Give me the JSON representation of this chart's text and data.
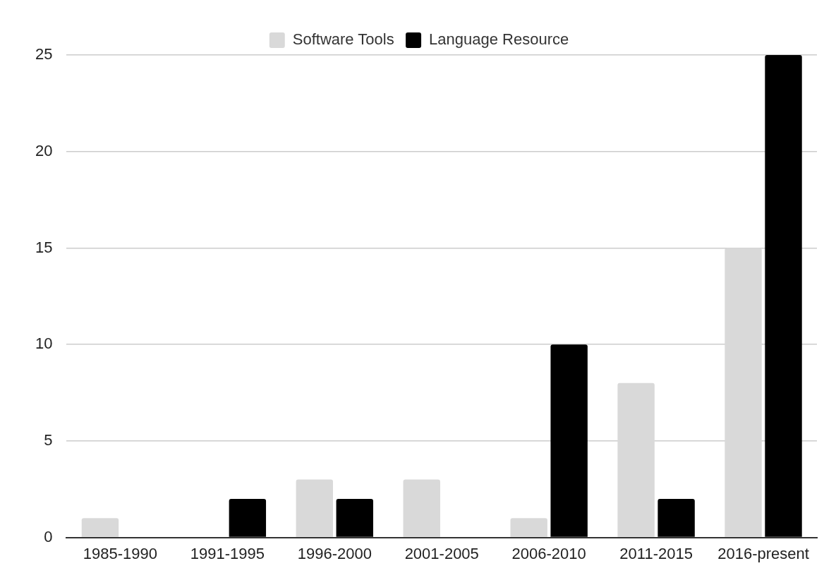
{
  "chart_data": {
    "type": "bar",
    "categories": [
      "1985-1990",
      "1991-1995",
      "1996-2000",
      "2001-2005",
      "2006-2010",
      "2011-2015",
      "2016-present"
    ],
    "series": [
      {
        "name": "Software Tools",
        "color": "#d9d9d9",
        "values": [
          1,
          0,
          3,
          3,
          1,
          8,
          15
        ]
      },
      {
        "name": "Language Resource",
        "color": "#000000",
        "values": [
          0,
          2,
          2,
          0,
          10,
          2,
          25
        ]
      }
    ],
    "ylim": [
      0,
      25
    ],
    "yticks": [
      0,
      5,
      10,
      15,
      20,
      25
    ],
    "grid": "y",
    "legend": "top"
  }
}
